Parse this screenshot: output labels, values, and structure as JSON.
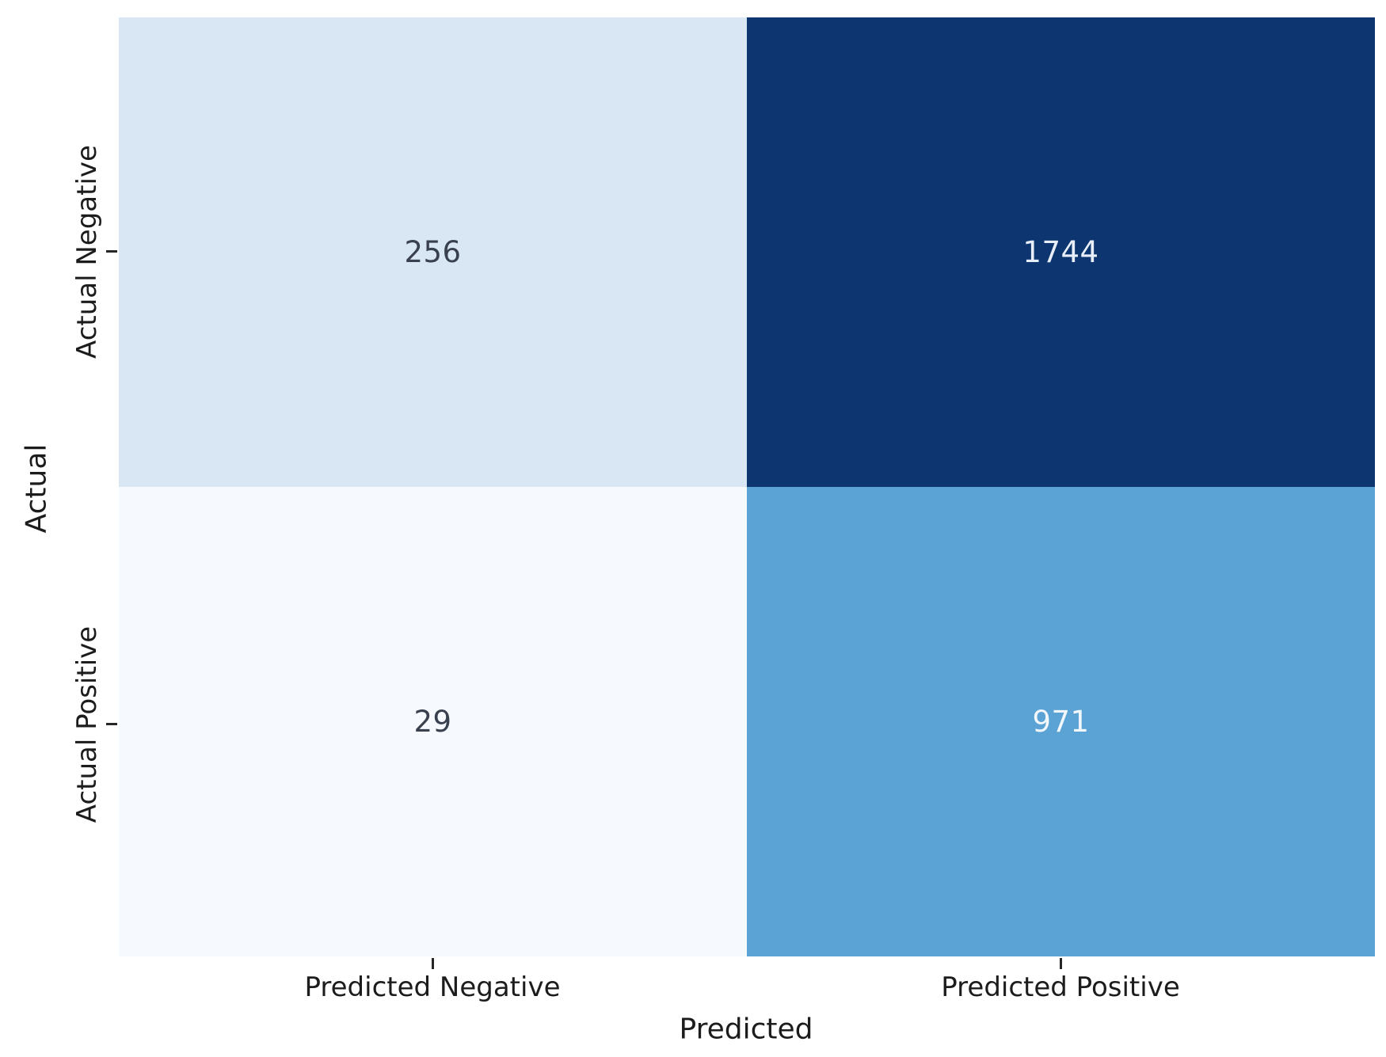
{
  "figure": {
    "background": "#ffffff",
    "tick_color": "#262626",
    "label_color": "#1c1c1c"
  },
  "chart_data": {
    "type": "heatmap",
    "title": "",
    "xlabel": "Predicted",
    "ylabel": "Actual",
    "x_categories": [
      "Predicted Negative",
      "Predicted Positive"
    ],
    "y_categories": [
      "Actual Negative",
      "Actual Positive"
    ],
    "rows": [
      [
        256,
        1744
      ],
      [
        29,
        971
      ]
    ],
    "colormap": "Blues",
    "legend": "none",
    "grid": false,
    "cells": [
      {
        "row": "Actual Negative",
        "col": "Predicted Negative",
        "value": "256",
        "bg": "#d9e7f5",
        "fg": "#39414e"
      },
      {
        "row": "Actual Negative",
        "col": "Predicted Positive",
        "value": "1744",
        "bg": "#0d356f",
        "fg": "#e9eff8"
      },
      {
        "row": "Actual Positive",
        "col": "Predicted Negative",
        "value": "29",
        "bg": "#f6f9fe",
        "fg": "#39414e"
      },
      {
        "row": "Actual Positive",
        "col": "Predicted Positive",
        "value": "971",
        "bg": "#5aa3d4",
        "fg": "#f2f7fc"
      }
    ]
  }
}
